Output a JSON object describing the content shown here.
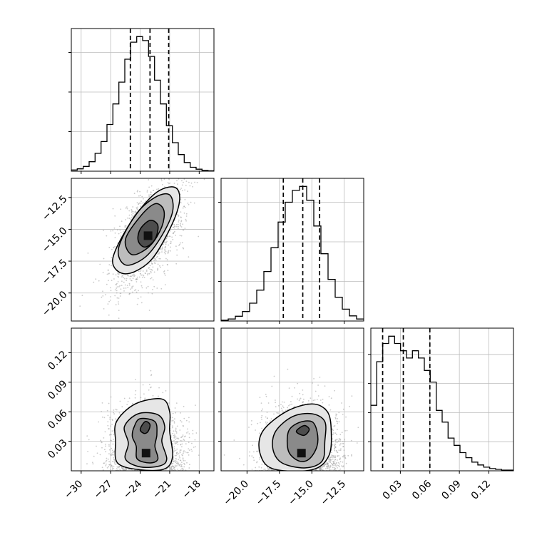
{
  "chart_data": [
    {
      "type": "histogram",
      "panel": "p00",
      "xlim": [
        -31,
        -16.5
      ],
      "bin_values": [
        0.3,
        0.6,
        1.2,
        2.4,
        4.5,
        7.5,
        11.8,
        17.0,
        22.5,
        28.3,
        32.6,
        34.0,
        33.0,
        29.0,
        23.0,
        17.0,
        11.5,
        7.2,
        4.2,
        2.2,
        1.0,
        0.5,
        0.2,
        0.1
      ],
      "quantile_lines": [
        -25.0,
        -23.0,
        -21.1
      ],
      "xticks": [
        -30,
        -27,
        -24,
        -21,
        -18
      ],
      "xtick_labels": [],
      "yticks": [
        10,
        20,
        30
      ],
      "ytick_labels": []
    },
    {
      "type": "contour-scatter",
      "panel": "p10",
      "xlim": [
        -31,
        -16.5
      ],
      "ylim": [
        -22.2,
        -11
      ],
      "peak": [
        -23.2,
        -15.5
      ],
      "contour_levels": [
        [
          [
            -24.0,
            -15.0
          ],
          [
            -23.0,
            -14.3
          ],
          [
            -22.2,
            -14.7
          ],
          [
            -22.5,
            -15.8
          ],
          [
            -23.5,
            -16.4
          ],
          [
            -24.2,
            -15.9
          ]
        ],
        [
          [
            -25.5,
            -15.8
          ],
          [
            -24.0,
            -14.0
          ],
          [
            -22.5,
            -13.0
          ],
          [
            -21.6,
            -13.5
          ],
          [
            -21.8,
            -14.8
          ],
          [
            -23.0,
            -16.3
          ],
          [
            -24.8,
            -17.0
          ]
        ],
        [
          [
            -26.2,
            -16.5
          ],
          [
            -24.5,
            -13.9
          ],
          [
            -22.5,
            -12.5
          ],
          [
            -21.0,
            -12.3
          ],
          [
            -20.7,
            -13.6
          ],
          [
            -21.8,
            -15.5
          ],
          [
            -23.5,
            -17.2
          ],
          [
            -25.5,
            -17.8
          ]
        ],
        [
          [
            -26.8,
            -17.4
          ],
          [
            -25.0,
            -14.5
          ],
          [
            -22.5,
            -12.2
          ],
          [
            -20.5,
            -11.7
          ],
          [
            -20.0,
            -12.8
          ],
          [
            -21.0,
            -15.0
          ],
          [
            -23.0,
            -17.5
          ],
          [
            -25.5,
            -18.5
          ]
        ]
      ],
      "yticks": [
        -20.0,
        -17.5,
        -15.0,
        -12.5
      ],
      "ytick_labels": [
        "−20.0",
        "−17.5",
        "−15.0",
        "−12.5"
      ]
    },
    {
      "type": "histogram",
      "panel": "p11",
      "xlim": [
        -22,
        -11
      ],
      "bin_values": [
        0.2,
        0.5,
        1.2,
        2.4,
        4.5,
        7.8,
        12.5,
        18.5,
        25.0,
        30.0,
        33.0,
        34.0,
        30.5,
        24.0,
        17.0,
        10.5,
        6.0,
        3.0,
        1.3,
        0.5
      ],
      "quantile_lines": [
        -17.2,
        -15.7,
        -14.4
      ],
      "xticks": [
        -20.0,
        -17.5,
        -15.0,
        -12.5
      ],
      "xtick_labels": [],
      "yticks": [
        10,
        20,
        30
      ],
      "ytick_labels": []
    },
    {
      "type": "contour-scatter",
      "panel": "p20",
      "xlim": [
        -31,
        -16.5
      ],
      "ylim": [
        0.0,
        0.145
      ],
      "peak": [
        -23.4,
        0.018
      ],
      "contour_levels": [
        [
          [
            -24.0,
            0.042
          ],
          [
            -23.5,
            0.05
          ],
          [
            -23.0,
            0.047
          ],
          [
            -23.2,
            0.04
          ],
          [
            -23.6,
            0.038
          ]
        ],
        [
          [
            -24.6,
            0.045
          ],
          [
            -24.0,
            0.053
          ],
          [
            -22.5,
            0.05
          ],
          [
            -22.3,
            0.037
          ],
          [
            -22.5,
            0.025
          ],
          [
            -22.2,
            0.012
          ],
          [
            -23.0,
            0.008
          ],
          [
            -24.3,
            0.012
          ],
          [
            -24.4,
            0.025
          ],
          [
            -24.8,
            0.035
          ]
        ],
        [
          [
            -25.6,
            0.045
          ],
          [
            -24.2,
            0.058
          ],
          [
            -22.2,
            0.057
          ],
          [
            -21.5,
            0.045
          ],
          [
            -21.8,
            0.03
          ],
          [
            -21.3,
            0.012
          ],
          [
            -22.0,
            0.005
          ],
          [
            -24.0,
            0.004
          ],
          [
            -25.5,
            0.012
          ],
          [
            -25.2,
            0.028
          ]
        ],
        [
          [
            -26.4,
            0.05
          ],
          [
            -24.5,
            0.068
          ],
          [
            -21.8,
            0.073
          ],
          [
            -21.0,
            0.06
          ],
          [
            -21.0,
            0.04
          ],
          [
            -20.7,
            0.015
          ],
          [
            -21.5,
            0.002
          ],
          [
            -24.0,
            0.001
          ],
          [
            -26.3,
            0.008
          ],
          [
            -26.5,
            0.03
          ]
        ]
      ],
      "xticks": [
        -30,
        -27,
        -24,
        -21,
        -18
      ],
      "xtick_labels": [
        "−30",
        "−27",
        "−24",
        "−21",
        "−18"
      ],
      "yticks": [
        0.03,
        0.06,
        0.09,
        0.12
      ],
      "ytick_labels": [
        "0.03",
        "0.06",
        "0.09",
        "0.12"
      ]
    },
    {
      "type": "contour-scatter",
      "panel": "p21",
      "xlim": [
        -22,
        -11
      ],
      "ylim": [
        0.0,
        0.145
      ],
      "peak": [
        -15.8,
        0.018
      ],
      "contour_levels": [
        [
          [
            -16.2,
            0.04
          ],
          [
            -15.6,
            0.046
          ],
          [
            -15.2,
            0.042
          ],
          [
            -15.6,
            0.036
          ]
        ],
        [
          [
            -16.8,
            0.04
          ],
          [
            -16.0,
            0.049
          ],
          [
            -15.0,
            0.05
          ],
          [
            -14.6,
            0.04
          ],
          [
            -14.6,
            0.025
          ],
          [
            -15.2,
            0.012
          ],
          [
            -16.0,
            0.01
          ],
          [
            -16.8,
            0.02
          ]
        ],
        [
          [
            -17.8,
            0.04
          ],
          [
            -16.5,
            0.055
          ],
          [
            -15.0,
            0.058
          ],
          [
            -14.0,
            0.05
          ],
          [
            -14.0,
            0.03
          ],
          [
            -14.2,
            0.01
          ],
          [
            -15.5,
            0.003
          ],
          [
            -17.3,
            0.008
          ],
          [
            -18.0,
            0.022
          ]
        ],
        [
          [
            -18.8,
            0.04
          ],
          [
            -17.0,
            0.06
          ],
          [
            -15.0,
            0.068
          ],
          [
            -13.8,
            0.06
          ],
          [
            -13.5,
            0.04
          ],
          [
            -13.7,
            0.015
          ],
          [
            -15.0,
            0.001
          ],
          [
            -18.0,
            0.002
          ],
          [
            -19.0,
            0.018
          ]
        ]
      ],
      "xticks": [
        -20.0,
        -17.5,
        -15.0,
        -12.5
      ],
      "xtick_labels": [
        "−20.0",
        "−17.5",
        "−15.0",
        "−12.5"
      ],
      "yticks": [
        0.03,
        0.06,
        0.09,
        0.12
      ],
      "ytick_labels": []
    },
    {
      "type": "histogram",
      "panel": "p22",
      "xlim": [
        0.0,
        0.145
      ],
      "bin_values": [
        9.0,
        15.0,
        17.5,
        18.5,
        17.5,
        16.5,
        15.5,
        16.5,
        15.5,
        13.8,
        12.2,
        8.3,
        6.7,
        4.5,
        3.5,
        2.5,
        1.8,
        1.2,
        0.8,
        0.5,
        0.3,
        0.2,
        0.1,
        0.1
      ],
      "quantile_lines": [
        0.012,
        0.033,
        0.06
      ],
      "xticks": [
        0.03,
        0.06,
        0.09,
        0.12
      ],
      "xtick_labels": [
        "0.03",
        "0.06",
        "0.09",
        "0.12"
      ],
      "yticks": [
        4,
        8,
        12,
        16
      ],
      "ytick_labels": []
    }
  ]
}
